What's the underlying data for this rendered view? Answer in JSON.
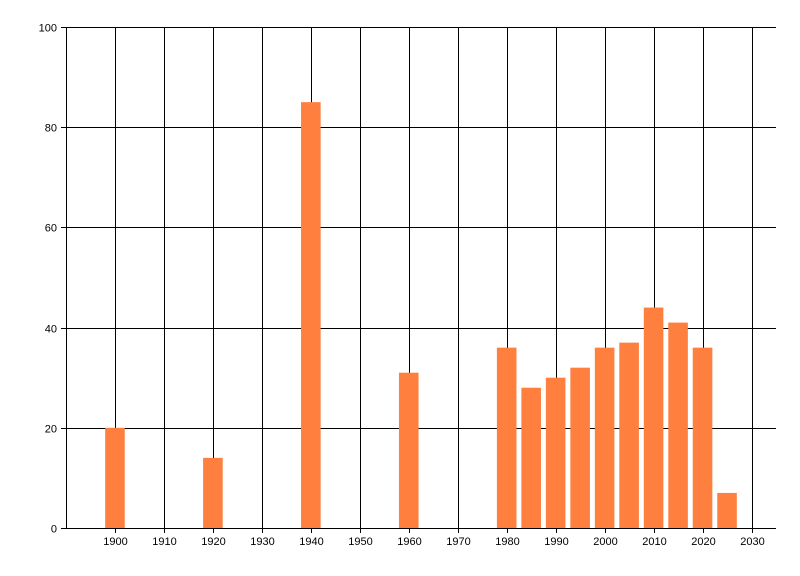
{
  "chart_data": {
    "type": "bar",
    "x": [
      1900,
      1920,
      1940,
      1960,
      1980,
      1985,
      1990,
      1995,
      2000,
      2005,
      2010,
      2015,
      2020,
      2025
    ],
    "values": [
      20,
      14,
      85,
      31,
      36,
      28,
      30,
      32,
      36,
      37,
      44,
      41,
      36,
      7
    ],
    "bar_width_years": 4,
    "xlim": [
      1890,
      2035
    ],
    "ylim": [
      0,
      100
    ],
    "x_ticks": [
      1900,
      1910,
      1920,
      1930,
      1940,
      1950,
      1960,
      1970,
      1980,
      1990,
      2000,
      2010,
      2020,
      2030
    ],
    "x_tick_labels": [
      "1900",
      "1910",
      "1920",
      "1930",
      "1940",
      "1950",
      "1960",
      "1970",
      "1980",
      "1990",
      "2000",
      "2010",
      "2020",
      "2030"
    ],
    "y_ticks": [
      0,
      20,
      40,
      60,
      80,
      100
    ],
    "y_tick_labels": [
      "0",
      "20",
      "40",
      "60",
      "80",
      "100"
    ],
    "grid": true,
    "bar_color": "#FF7F3F",
    "grid_color": "#000000"
  }
}
